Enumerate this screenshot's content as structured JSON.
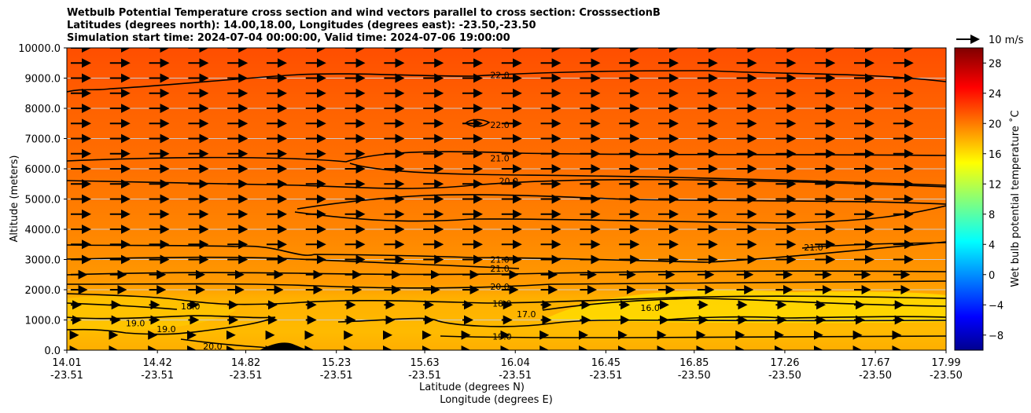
{
  "title": {
    "line1": "Wetbulb Potential Temperature cross section and wind vectors parallel to cross section: CrosssectionB",
    "line2": "Latitudes (degrees north): 14.00,18.00, Longitudes (degrees east): -23.50,-23.50",
    "line3": "Simulation start time: 2024-07-04 00:00:00, Valid time: 2024-07-06 19:00:00"
  },
  "chart_data": {
    "type": "contourf",
    "ylabel": "Altitude (meters)",
    "xlabel_lat": "Latitude (degrees N)",
    "xlabel_lon": "Longitude (degrees E)",
    "ylim": [
      0,
      10000
    ],
    "yticks": [
      "0.0",
      "1000.0",
      "2000.0",
      "3000.0",
      "4000.0",
      "5000.0",
      "6000.0",
      "7000.0",
      "8000.0",
      "9000.0",
      "10000.0"
    ],
    "xlim": [
      14.01,
      17.99
    ],
    "xticks": [
      {
        "lat": "14.01",
        "lon": "-23.51"
      },
      {
        "lat": "14.42",
        "lon": "-23.51"
      },
      {
        "lat": "14.82",
        "lon": "-23.51"
      },
      {
        "lat": "15.23",
        "lon": "-23.51"
      },
      {
        "lat": "15.63",
        "lon": "-23.51"
      },
      {
        "lat": "16.04",
        "lon": "-23.51"
      },
      {
        "lat": "16.45",
        "lon": "-23.51"
      },
      {
        "lat": "16.85",
        "lon": "-23.50"
      },
      {
        "lat": "17.26",
        "lon": "-23.50"
      },
      {
        "lat": "17.67",
        "lon": "-23.50"
      },
      {
        "lat": "17.99",
        "lon": "-23.50"
      }
    ],
    "colorbar": {
      "label": "Wet bulb potential temperature ˚C",
      "range": [
        -10,
        30
      ],
      "ticks": [
        "28",
        "24",
        "20",
        "16",
        "12",
        "8",
        "4",
        "0",
        "−4",
        "−8"
      ]
    },
    "wind_reference": {
      "label": "10 m/s",
      "speed_ms": 10
    },
    "contour_labels": [
      {
        "text": "22.0",
        "lat": 15.97,
        "alt": 9100
      },
      {
        "text": "22.0",
        "lat": 15.97,
        "alt": 7450
      },
      {
        "text": "21.0",
        "lat": 15.97,
        "alt": 6350
      },
      {
        "text": "20.0",
        "lat": 16.01,
        "alt": 5600
      },
      {
        "text": "21.0",
        "lat": 15.97,
        "alt": 3000
      },
      {
        "text": "21.0",
        "lat": 15.97,
        "alt": 2700
      },
      {
        "text": "20.0",
        "lat": 15.97,
        "alt": 2100
      },
      {
        "text": "18.0",
        "lat": 15.98,
        "alt": 1550
      },
      {
        "text": "19.0",
        "lat": 15.98,
        "alt": 450
      },
      {
        "text": "18.0",
        "lat": 14.57,
        "alt": 1450
      },
      {
        "text": "19.0",
        "lat": 14.32,
        "alt": 900
      },
      {
        "text": "19.0",
        "lat": 14.46,
        "alt": 700
      },
      {
        "text": "20.0",
        "lat": 14.67,
        "alt": 130
      },
      {
        "text": "17.0",
        "lat": 16.09,
        "alt": 1200
      },
      {
        "text": "16.0",
        "lat": 16.65,
        "alt": 1400
      },
      {
        "text": "21.0",
        "lat": 17.39,
        "alt": 3400
      }
    ]
  }
}
